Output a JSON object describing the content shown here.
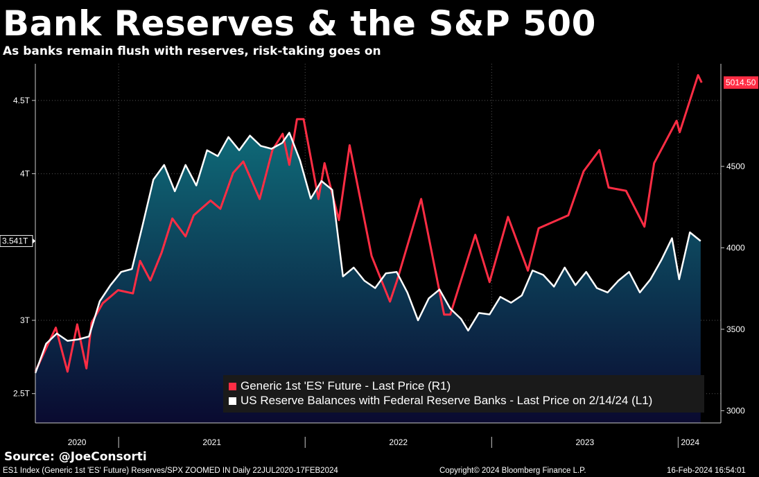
{
  "title": "Bank Reserves & the S&P 500",
  "subtitle": "As banks remain flush with reserves, risk-taking goes on",
  "source": "Source: @JoeConsorti",
  "footer": {
    "left": "ES1 Index (Generic 1st 'ES' Future) Reserves/SPX ZOOMED IN  Daily 22JUL2020-17FEB2024",
    "center": "Copyright© 2024 Bloomberg Finance L.P.",
    "right": "16-Feb-2024 16:54:01"
  },
  "colors": {
    "background": "#000000",
    "es": "#ff2d44",
    "reserves": "#ffffff",
    "fill_top": "#0f6a78",
    "fill_bottom": "#0a0a30",
    "legend_bg": "#1a1a1a"
  },
  "chart_data": {
    "type": "line",
    "x_range": [
      "2020-07-22",
      "2024-02-17"
    ],
    "grid": true,
    "legend_position": "bottom-right",
    "left_axis": {
      "ticks": [
        "2.5T",
        "3T",
        "4T",
        "4.5T"
      ],
      "tick_values": [
        2.5,
        3,
        4,
        4.5
      ],
      "ylim": [
        2.3,
        4.75
      ],
      "last_value_label": "3.541T"
    },
    "right_axis": {
      "ticks": [
        "3000",
        "3500",
        "4000",
        "4500"
      ],
      "tick_values": [
        3000,
        3500,
        4000,
        4500
      ],
      "ylim": [
        2925,
        5130
      ],
      "last_value_label": "5014.50"
    },
    "x_ticks": [
      "2020",
      "2021",
      "2022",
      "2023",
      "2024"
    ],
    "series": [
      {
        "name": "Generic 1st 'ES' Future - Last Price (R1)",
        "axis": "right",
        "color": "#ff2d44",
        "points": [
          [
            "2020-07-22",
            3240
          ],
          [
            "2020-08-07",
            3350
          ],
          [
            "2020-08-31",
            3510
          ],
          [
            "2020-09-23",
            3240
          ],
          [
            "2020-10-12",
            3530
          ],
          [
            "2020-10-30",
            3260
          ],
          [
            "2020-11-09",
            3540
          ],
          [
            "2020-12-01",
            3660
          ],
          [
            "2020-12-31",
            3740
          ],
          [
            "2021-01-29",
            3720
          ],
          [
            "2021-02-12",
            3920
          ],
          [
            "2021-03-04",
            3800
          ],
          [
            "2021-03-26",
            3970
          ],
          [
            "2021-04-16",
            4180
          ],
          [
            "2021-05-12",
            4070
          ],
          [
            "2021-05-28",
            4200
          ],
          [
            "2021-06-30",
            4290
          ],
          [
            "2021-07-19",
            4240
          ],
          [
            "2021-08-13",
            4460
          ],
          [
            "2021-09-02",
            4530
          ],
          [
            "2021-10-04",
            4300
          ],
          [
            "2021-10-29",
            4600
          ],
          [
            "2021-11-18",
            4700
          ],
          [
            "2021-12-01",
            4510
          ],
          [
            "2021-12-16",
            4790
          ],
          [
            "2021-12-29",
            4790
          ],
          [
            "2022-01-27",
            4300
          ],
          [
            "2022-02-08",
            4520
          ],
          [
            "2022-03-08",
            4170
          ],
          [
            "2022-03-29",
            4630
          ],
          [
            "2022-05-11",
            3950
          ],
          [
            "2022-06-16",
            3670
          ],
          [
            "2022-06-30",
            3800
          ],
          [
            "2022-08-16",
            4300
          ],
          [
            "2022-09-30",
            3590
          ],
          [
            "2022-10-12",
            3590
          ],
          [
            "2022-11-30",
            4080
          ],
          [
            "2022-12-28",
            3790
          ],
          [
            "2023-02-02",
            4190
          ],
          [
            "2023-03-13",
            3860
          ],
          [
            "2023-04-03",
            4120
          ],
          [
            "2023-05-31",
            4200
          ],
          [
            "2023-06-30",
            4470
          ],
          [
            "2023-07-31",
            4600
          ],
          [
            "2023-08-18",
            4370
          ],
          [
            "2023-09-21",
            4350
          ],
          [
            "2023-10-27",
            4130
          ],
          [
            "2023-11-15",
            4520
          ],
          [
            "2023-12-29",
            4780
          ],
          [
            "2024-01-04",
            4710
          ],
          [
            "2024-02-09",
            5060
          ],
          [
            "2024-02-16",
            5014.5
          ]
        ]
      },
      {
        "name": "US Reserve Balances with Federal Reserve Banks - Last Price on 2/14/24 (L1)",
        "axis": "left",
        "color": "#ffffff",
        "points": [
          [
            "2020-07-22",
            2.64
          ],
          [
            "2020-08-12",
            2.84
          ],
          [
            "2020-09-02",
            2.91
          ],
          [
            "2020-09-23",
            2.86
          ],
          [
            "2020-10-14",
            2.87
          ],
          [
            "2020-11-04",
            2.89
          ],
          [
            "2020-11-25",
            3.13
          ],
          [
            "2020-12-16",
            3.24
          ],
          [
            "2021-01-06",
            3.33
          ],
          [
            "2021-01-27",
            3.35
          ],
          [
            "2021-02-17",
            3.65
          ],
          [
            "2021-03-10",
            3.96
          ],
          [
            "2021-03-31",
            4.06
          ],
          [
            "2021-04-21",
            3.88
          ],
          [
            "2021-05-12",
            4.06
          ],
          [
            "2021-06-02",
            3.92
          ],
          [
            "2021-06-23",
            4.16
          ],
          [
            "2021-07-14",
            4.12
          ],
          [
            "2021-08-04",
            4.25
          ],
          [
            "2021-08-25",
            4.16
          ],
          [
            "2021-09-15",
            4.26
          ],
          [
            "2021-10-06",
            4.19
          ],
          [
            "2021-10-27",
            4.17
          ],
          [
            "2021-11-17",
            4.21
          ],
          [
            "2021-12-01",
            4.28
          ],
          [
            "2021-12-22",
            4.09
          ],
          [
            "2022-01-12",
            3.83
          ],
          [
            "2022-02-02",
            3.95
          ],
          [
            "2022-02-23",
            3.89
          ],
          [
            "2022-03-16",
            3.3
          ],
          [
            "2022-04-06",
            3.36
          ],
          [
            "2022-04-27",
            3.27
          ],
          [
            "2022-05-18",
            3.22
          ],
          [
            "2022-06-08",
            3.32
          ],
          [
            "2022-06-29",
            3.33
          ],
          [
            "2022-07-20",
            3.19
          ],
          [
            "2022-08-10",
            3.0
          ],
          [
            "2022-08-31",
            3.15
          ],
          [
            "2022-09-21",
            3.21
          ],
          [
            "2022-10-12",
            3.08
          ],
          [
            "2022-11-02",
            3.01
          ],
          [
            "2022-11-16",
            2.93
          ],
          [
            "2022-12-07",
            3.05
          ],
          [
            "2022-12-28",
            3.04
          ],
          [
            "2023-01-18",
            3.16
          ],
          [
            "2023-02-08",
            3.12
          ],
          [
            "2023-03-01",
            3.17
          ],
          [
            "2023-03-22",
            3.34
          ],
          [
            "2023-04-12",
            3.31
          ],
          [
            "2023-05-03",
            3.23
          ],
          [
            "2023-05-24",
            3.36
          ],
          [
            "2023-06-14",
            3.24
          ],
          [
            "2023-07-05",
            3.33
          ],
          [
            "2023-07-26",
            3.22
          ],
          [
            "2023-08-16",
            3.19
          ],
          [
            "2023-09-06",
            3.27
          ],
          [
            "2023-09-27",
            3.33
          ],
          [
            "2023-10-18",
            3.19
          ],
          [
            "2023-11-08",
            3.28
          ],
          [
            "2023-11-29",
            3.41
          ],
          [
            "2023-12-20",
            3.56
          ],
          [
            "2024-01-03",
            3.28
          ],
          [
            "2024-01-24",
            3.6
          ],
          [
            "2024-02-14",
            3.541
          ]
        ]
      }
    ]
  }
}
